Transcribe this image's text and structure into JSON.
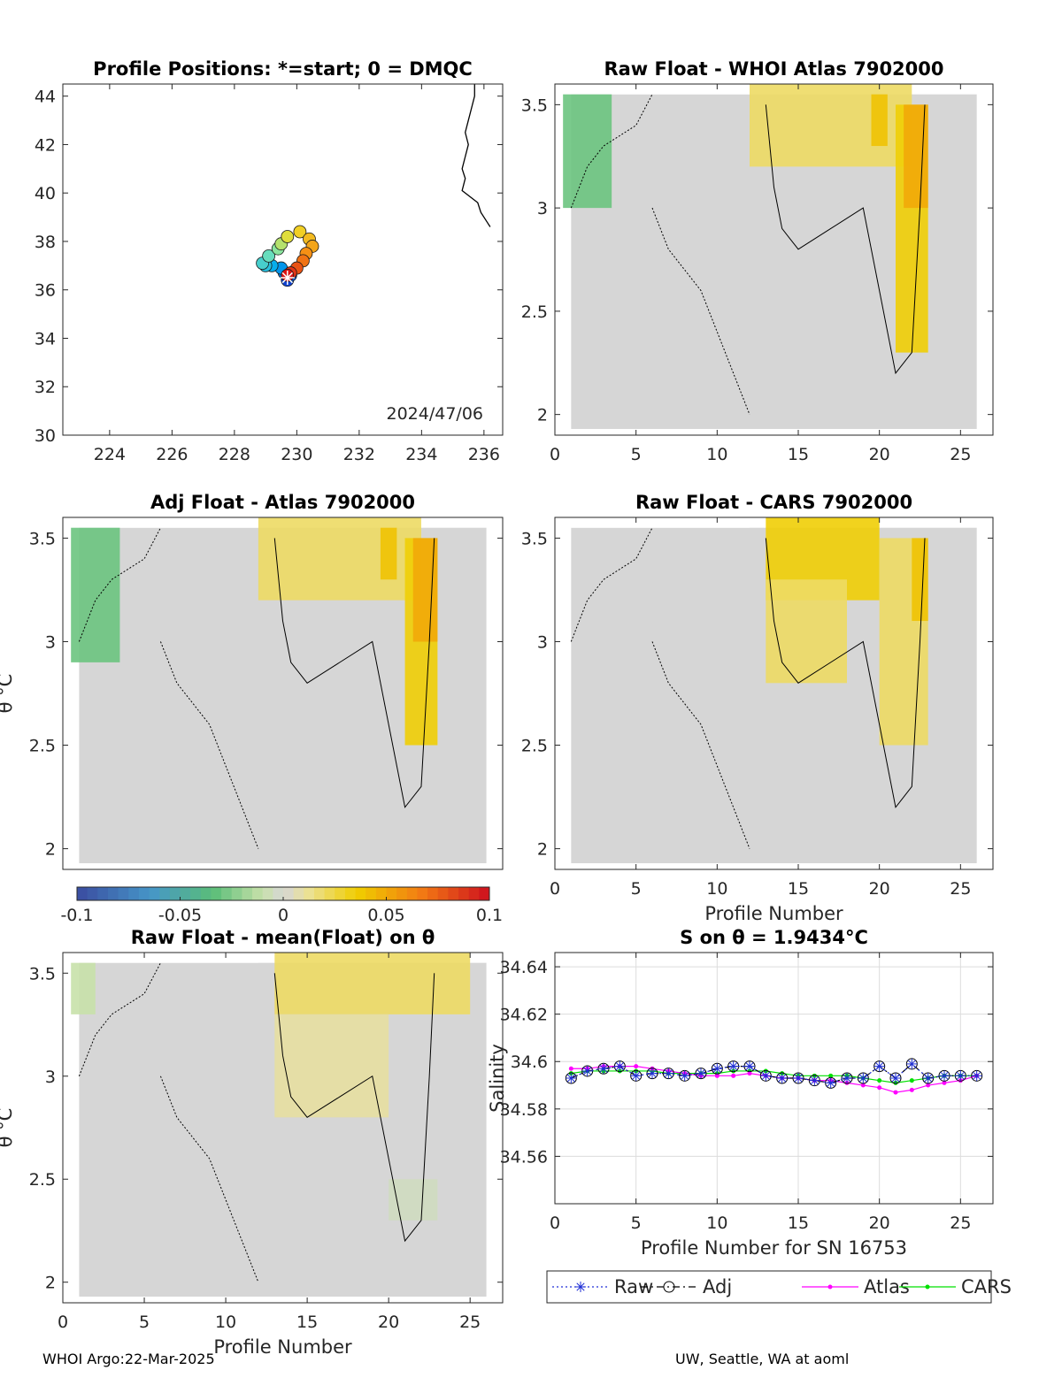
{
  "footer": {
    "left": "WHOI Argo:22-Mar-2025",
    "right": "UW, Seattle, WA at aoml"
  },
  "colors": {
    "background_field": "#d6d6d6",
    "coast": "#000000",
    "raw": "#1f2fd6",
    "adj": "#000000",
    "atlas": "#ff00ff",
    "cars": "#00e000"
  },
  "chart_data": [
    {
      "id": "map",
      "type": "scatter",
      "title": "Profile Positions: *=start; 0 = DMQC",
      "annotation": "2024/47/06",
      "xlim": [
        222.5,
        236.6
      ],
      "ylim": [
        30,
        44.5
      ],
      "xticks": [
        "224",
        "226",
        "228",
        "230",
        "232",
        "234",
        "236"
      ],
      "yticks": [
        "30",
        "32",
        "34",
        "36",
        "38",
        "40",
        "42",
        "44"
      ],
      "xtick_values": [
        224,
        226,
        228,
        230,
        232,
        234,
        236
      ],
      "ytick_values": [
        30,
        32,
        34,
        36,
        38,
        40,
        42,
        44
      ],
      "start_marker": "*",
      "positions": [
        [
          229.7,
          36.5
        ],
        [
          229.7,
          36.4
        ],
        [
          229.8,
          36.6
        ],
        [
          229.6,
          36.7
        ],
        [
          229.5,
          36.9
        ],
        [
          229.2,
          37.0
        ],
        [
          229.0,
          37.0
        ],
        [
          228.9,
          37.1
        ],
        [
          229.1,
          37.4
        ],
        [
          229.4,
          37.7
        ],
        [
          229.5,
          37.9
        ],
        [
          229.7,
          38.2
        ],
        [
          230.1,
          38.4
        ],
        [
          230.4,
          38.1
        ],
        [
          230.5,
          37.8
        ],
        [
          230.3,
          37.5
        ],
        [
          230.2,
          37.2
        ],
        [
          230.0,
          36.9
        ],
        [
          229.8,
          36.7
        ],
        [
          229.7,
          36.6
        ]
      ],
      "coast": [
        [
          235.7,
          44.5
        ],
        [
          235.7,
          44.0
        ],
        [
          235.6,
          43.5
        ],
        [
          235.5,
          43.0
        ],
        [
          235.4,
          42.5
        ],
        [
          235.5,
          42.0
        ],
        [
          235.4,
          41.5
        ],
        [
          235.3,
          41.0
        ],
        [
          235.4,
          40.6
        ],
        [
          235.3,
          40.1
        ],
        [
          235.8,
          39.6
        ],
        [
          235.9,
          39.2
        ],
        [
          236.1,
          38.8
        ],
        [
          236.2,
          38.6
        ]
      ]
    },
    {
      "id": "raw-whoi",
      "type": "heatmap",
      "title": "Raw Float - WHOI Atlas  7902000",
      "xlim": [
        0,
        27
      ],
      "ylim": [
        1.9,
        3.6
      ],
      "xticks": [
        "0",
        "5",
        "10",
        "15",
        "20",
        "25"
      ],
      "xtick_values": [
        0,
        5,
        10,
        15,
        20,
        25
      ],
      "yticks": [
        "2",
        "2.5",
        "3",
        "3.5"
      ],
      "ytick_values": [
        2,
        2.5,
        3,
        3.5
      ],
      "xlabel": "",
      "ylabel": "",
      "blobs": [
        {
          "x0": 0.5,
          "x1": 3.5,
          "y0": 3.0,
          "y1": 3.55,
          "value": -0.03
        },
        {
          "x0": 12,
          "x1": 22,
          "y0": 3.2,
          "y1": 3.6,
          "value": 0.02
        },
        {
          "x0": 19.5,
          "x1": 20.5,
          "y0": 3.3,
          "y1": 3.55,
          "value": 0.04
        },
        {
          "x0": 21,
          "x1": 23,
          "y0": 2.3,
          "y1": 3.5,
          "value": 0.035
        },
        {
          "x0": 21.5,
          "x1": 23,
          "y0": 3.0,
          "y1": 3.5,
          "value": 0.05
        }
      ]
    },
    {
      "id": "adj-atlas",
      "type": "heatmap",
      "title": "Adj Float - Atlas  7902000",
      "xlim": [
        0,
        27
      ],
      "ylim": [
        1.9,
        3.6
      ],
      "xticks": [],
      "xtick_values": [],
      "yticks": [
        "2",
        "2.5",
        "3",
        "3.5"
      ],
      "ytick_values": [
        2,
        2.5,
        3,
        3.5
      ],
      "ylabel": "θ °C",
      "blobs": [
        {
          "x0": 0.5,
          "x1": 3.5,
          "y0": 2.9,
          "y1": 3.55,
          "value": -0.03
        },
        {
          "x0": 12,
          "x1": 22,
          "y0": 3.2,
          "y1": 3.6,
          "value": 0.02
        },
        {
          "x0": 19.5,
          "x1": 20.5,
          "y0": 3.3,
          "y1": 3.55,
          "value": 0.04
        },
        {
          "x0": 21,
          "x1": 23,
          "y0": 2.5,
          "y1": 3.5,
          "value": 0.035
        },
        {
          "x0": 21.5,
          "x1": 23,
          "y0": 3.0,
          "y1": 3.5,
          "value": 0.05
        }
      ]
    },
    {
      "id": "raw-cars",
      "type": "heatmap",
      "title": "Raw Float - CARS  7902000",
      "xlim": [
        0,
        27
      ],
      "ylim": [
        1.9,
        3.6
      ],
      "xticks": [
        "0",
        "5",
        "10",
        "15",
        "20",
        "25"
      ],
      "xtick_values": [
        0,
        5,
        10,
        15,
        20,
        25
      ],
      "yticks": [
        "2",
        "2.5",
        "3",
        "3.5"
      ],
      "ytick_values": [
        2,
        2.5,
        3,
        3.5
      ],
      "xlabel": "Profile Number",
      "ylabel": "",
      "blobs": [
        {
          "x0": 13,
          "x1": 20,
          "y0": 3.2,
          "y1": 3.6,
          "value": 0.035
        },
        {
          "x0": 13,
          "x1": 18,
          "y0": 2.8,
          "y1": 3.3,
          "value": 0.02
        },
        {
          "x0": 20,
          "x1": 23,
          "y0": 2.5,
          "y1": 3.5,
          "value": 0.02
        },
        {
          "x0": 22,
          "x1": 23,
          "y0": 3.1,
          "y1": 3.5,
          "value": 0.04
        }
      ]
    },
    {
      "id": "colorbar",
      "type": "heatmap",
      "ticks": [
        "-0.1",
        "-0.05",
        "0",
        "0.05",
        "0.1"
      ],
      "tick_values": [
        -0.1,
        -0.05,
        0,
        0.05,
        0.1
      ],
      "range": [
        -0.1,
        0.1
      ]
    },
    {
      "id": "raw-mean",
      "type": "heatmap",
      "title": "Raw Float - mean(Float) on θ",
      "xlim": [
        0,
        27
      ],
      "ylim": [
        1.9,
        3.6
      ],
      "xticks": [
        "0",
        "5",
        "10",
        "15",
        "20",
        "25"
      ],
      "xtick_values": [
        0,
        5,
        10,
        15,
        20,
        25
      ],
      "yticks": [
        "2",
        "2.5",
        "3",
        "3.5"
      ],
      "ytick_values": [
        2,
        2.5,
        3,
        3.5
      ],
      "xlabel": "Profile Number",
      "ylabel": "θ °C",
      "blobs": [
        {
          "x0": 13,
          "x1": 25,
          "y0": 3.3,
          "y1": 3.6,
          "value": 0.02
        },
        {
          "x0": 13,
          "x1": 20,
          "y0": 2.8,
          "y1": 3.3,
          "value": 0.01
        },
        {
          "x0": 0.5,
          "x1": 2,
          "y0": 3.3,
          "y1": 3.55,
          "value": -0.01
        },
        {
          "x0": 20,
          "x1": 23,
          "y0": 2.3,
          "y1": 2.5,
          "value": -0.005
        }
      ]
    },
    {
      "id": "salinity",
      "type": "line",
      "title": "S on θ = 1.9434°C",
      "xlabel": "Profile Number for SN 16753",
      "ylabel": "Salinity",
      "xlim": [
        0,
        27
      ],
      "ylim": [
        34.54,
        34.646
      ],
      "xticks": [
        "0",
        "5",
        "10",
        "15",
        "20",
        "25"
      ],
      "xtick_values": [
        0,
        5,
        10,
        15,
        20,
        25
      ],
      "yticks": [
        "34.56",
        "34.58",
        "34.6",
        "34.62",
        "34.64"
      ],
      "ytick_values": [
        34.56,
        34.58,
        34.6,
        34.62,
        34.64
      ],
      "grid": true,
      "legend_position": "bottom-outside",
      "x": [
        1,
        2,
        3,
        4,
        5,
        6,
        7,
        8,
        9,
        10,
        11,
        12,
        13,
        14,
        15,
        16,
        17,
        18,
        19,
        20,
        21,
        22,
        23,
        24,
        25,
        26
      ],
      "series": [
        {
          "name": "Raw",
          "color": "#1f2fd6",
          "style": "dotted",
          "marker": "star",
          "values": [
            34.593,
            34.596,
            34.597,
            34.598,
            34.594,
            34.595,
            34.595,
            34.594,
            34.595,
            34.597,
            34.598,
            34.598,
            34.594,
            34.593,
            34.593,
            34.592,
            34.591,
            34.593,
            34.593,
            34.598,
            34.593,
            34.599,
            34.593,
            34.594,
            34.594,
            34.594
          ]
        },
        {
          "name": "Adj",
          "color": "#000000",
          "style": "dashdot",
          "marker": "circle",
          "values": [
            34.593,
            34.596,
            34.597,
            34.598,
            34.594,
            34.595,
            34.595,
            34.594,
            34.595,
            34.597,
            34.598,
            34.598,
            34.594,
            34.593,
            34.593,
            34.592,
            34.591,
            34.593,
            34.593,
            34.598,
            34.593,
            34.599,
            34.593,
            34.594,
            34.594,
            34.594
          ]
        },
        {
          "name": "Atlas",
          "color": "#ff00ff",
          "style": "solid",
          "marker": "dot",
          "values": [
            34.597,
            34.597,
            34.598,
            34.598,
            34.598,
            34.597,
            34.596,
            34.595,
            34.594,
            34.594,
            34.594,
            34.595,
            34.594,
            34.593,
            34.593,
            34.592,
            34.592,
            34.591,
            34.59,
            34.589,
            34.587,
            34.588,
            34.59,
            34.591,
            34.592,
            34.594
          ]
        },
        {
          "name": "CARS",
          "color": "#00e000",
          "style": "solid",
          "marker": "dot",
          "values": [
            34.595,
            34.596,
            34.596,
            34.596,
            34.596,
            34.596,
            34.595,
            34.595,
            34.595,
            34.595,
            34.596,
            34.596,
            34.596,
            34.595,
            34.594,
            34.594,
            34.594,
            34.594,
            34.593,
            34.592,
            34.591,
            34.592,
            34.593,
            34.594,
            34.594,
            34.594
          ]
        }
      ]
    }
  ]
}
